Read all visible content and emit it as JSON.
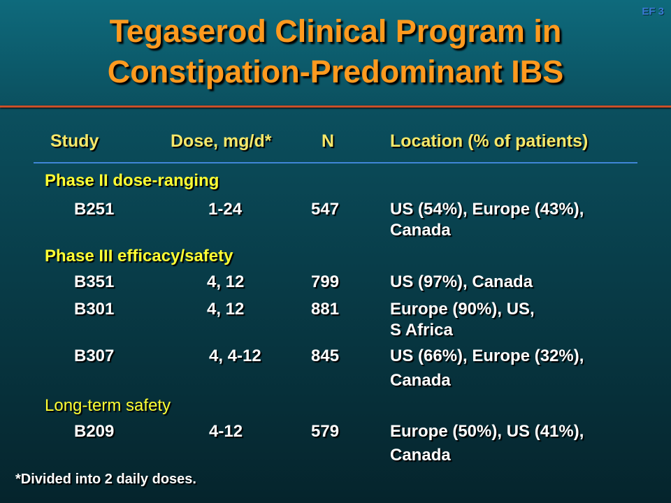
{
  "slide_id": "EF 3",
  "title_line1": "Tegaserod Clinical Program in",
  "title_line2": "Constipation-Predominant IBS",
  "headers": {
    "study": "Study",
    "dose": "Dose, mg/d*",
    "n": "N",
    "location": "Location (% of patients)"
  },
  "sections": [
    {
      "label": "Phase II dose-ranging",
      "rows": [
        {
          "study": "B251",
          "dose": "1-24",
          "n": "547",
          "loc1": "US (54%), Europe (43%),",
          "loc2": "Canada"
        }
      ]
    },
    {
      "label": "Phase III efficacy/safety",
      "rows": [
        {
          "study": "B351",
          "dose": "4, 12",
          "n": "799",
          "loc1": "US (97%), Canada",
          "loc2": ""
        },
        {
          "study": "B301",
          "dose": "4, 12",
          "n": "881",
          "loc1": "Europe (90%), US,",
          "loc2": "S Africa"
        },
        {
          "study": "B307",
          "dose": "4, 4-12",
          "n": "845",
          "loc1": "US (66%), Europe (32%),",
          "loc2": "Canada"
        }
      ]
    },
    {
      "label": "Long-term safety",
      "rows": [
        {
          "study": "B209",
          "dose": "4-12",
          "n": "579",
          "loc1": "Europe (50%), US (41%),",
          "loc2": "Canada"
        }
      ]
    }
  ],
  "footnote": "*Divided into 2 daily doses."
}
